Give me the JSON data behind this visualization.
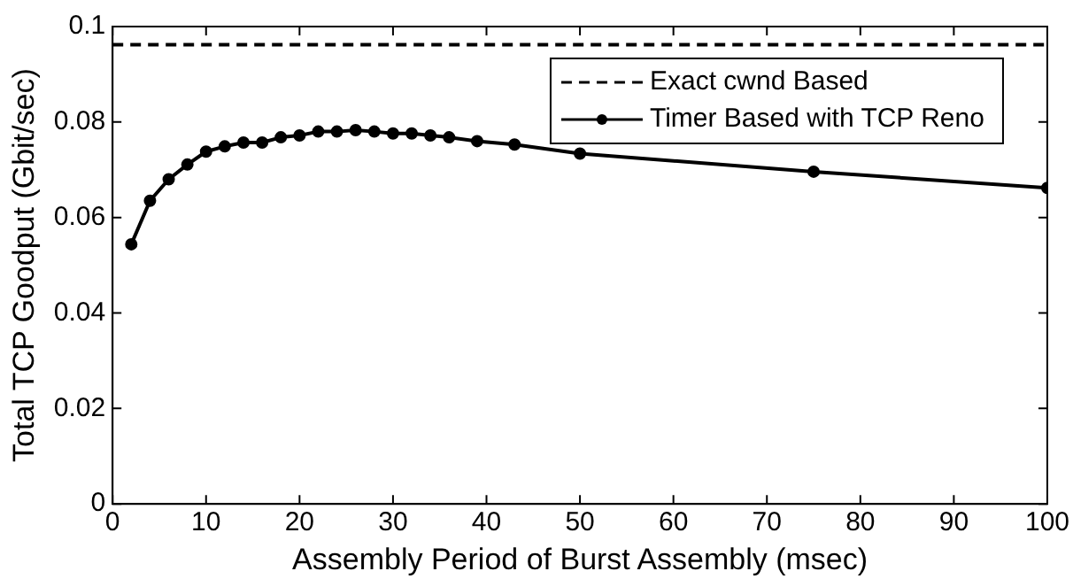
{
  "chart_data": {
    "type": "line",
    "xlabel": "Assembly Period of Burst Assembly (msec)",
    "ylabel": "Total TCP Goodput (Gbit/sec)",
    "xlim": [
      0,
      100
    ],
    "xticks": [
      0,
      10,
      20,
      30,
      40,
      50,
      60,
      70,
      80,
      90,
      100
    ],
    "ylim": [
      0,
      0.1
    ],
    "yticks": [
      0,
      0.02,
      0.04,
      0.06,
      0.08,
      0.1
    ],
    "grid": false,
    "legend": "top right",
    "series": [
      {
        "name": "Exact cwnd Based",
        "color": "#000000",
        "line_style": "dashed",
        "marker": "none",
        "x": [
          0,
          100
        ],
        "values": [
          0.0962,
          0.0962
        ]
      },
      {
        "name": "Timer Based with TCP Reno",
        "color": "#000000",
        "line_style": "solid",
        "marker": "circle",
        "x": [
          2,
          4,
          6,
          8,
          10,
          12,
          14,
          16,
          18,
          20,
          22,
          24,
          26,
          28,
          30,
          32,
          34,
          36,
          39,
          43,
          50,
          75,
          100
        ],
        "values": [
          0.0544,
          0.0635,
          0.068,
          0.0711,
          0.0738,
          0.0749,
          0.0757,
          0.0757,
          0.0768,
          0.0772,
          0.078,
          0.078,
          0.0783,
          0.078,
          0.0776,
          0.0776,
          0.0772,
          0.0768,
          0.076,
          0.0753,
          0.0734,
          0.0696,
          0.0662
        ]
      }
    ]
  }
}
